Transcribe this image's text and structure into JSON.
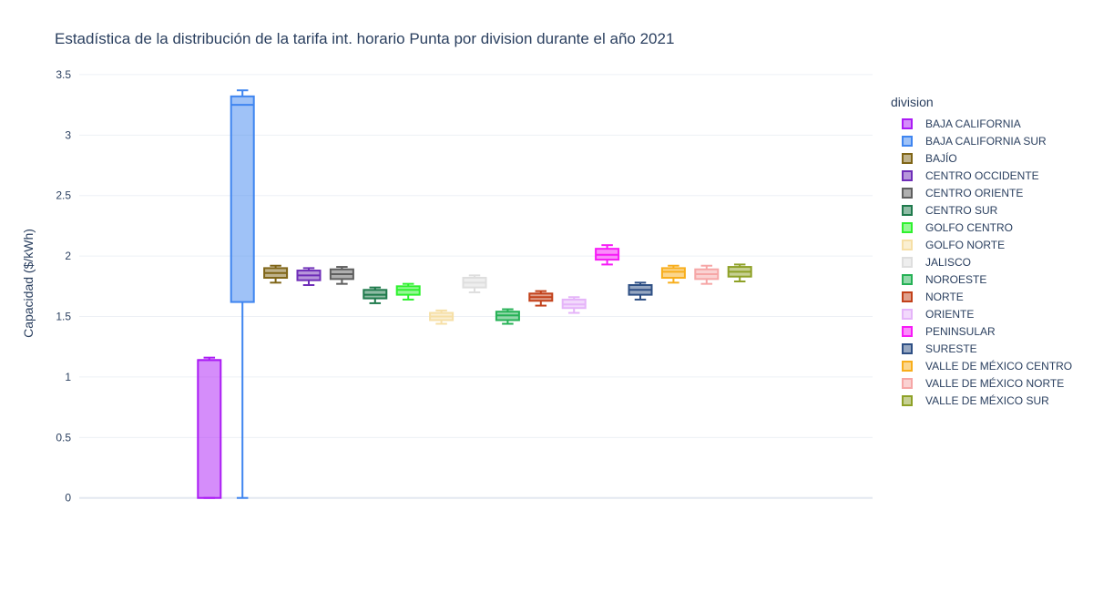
{
  "chart_data": {
    "type": "box",
    "title": "Estadística de la distribución de la tarifa int. horario Punta por division durante el año 2021",
    "ylabel": "Capacidad ($/kWh)",
    "xlabel": "",
    "ylim": [
      -0.1,
      3.65
    ],
    "yticks": [
      0,
      0.5,
      1,
      1.5,
      2,
      2.5,
      3,
      3.5
    ],
    "ytick_labels": [
      "0",
      "0.5",
      "1",
      "1.5",
      "2",
      "2.5",
      "3",
      "3.5"
    ],
    "grid": true,
    "legend_title": "division",
    "legend_position": "right",
    "series": [
      {
        "name": "BAJA CALIFORNIA",
        "color": "#ab1cf5",
        "min": 0,
        "q1": 0,
        "median": 1.14,
        "q3": 1.14,
        "max": 1.16
      },
      {
        "name": "BAJA CALIFORNIA SUR",
        "color": "#3f85f0",
        "min": 0,
        "q1": 1.62,
        "median": 3.25,
        "q3": 3.32,
        "max": 3.37
      },
      {
        "name": "BAJÍO",
        "color": "#7f6517",
        "min": 1.78,
        "q1": 1.82,
        "median": 1.86,
        "q3": 1.9,
        "max": 1.92
      },
      {
        "name": "CENTRO OCCIDENTE",
        "color": "#6f2eb8",
        "min": 1.76,
        "q1": 1.8,
        "median": 1.84,
        "q3": 1.88,
        "max": 1.9
      },
      {
        "name": "CENTRO ORIENTE",
        "color": "#5f5f5f",
        "min": 1.77,
        "q1": 1.81,
        "median": 1.85,
        "q3": 1.89,
        "max": 1.91
      },
      {
        "name": "CENTRO SUR",
        "color": "#1f7a4c",
        "min": 1.61,
        "q1": 1.65,
        "median": 1.68,
        "q3": 1.72,
        "max": 1.74
      },
      {
        "name": "GOLFO CENTRO",
        "color": "#2ef12e",
        "min": 1.64,
        "q1": 1.68,
        "median": 1.72,
        "q3": 1.75,
        "max": 1.77
      },
      {
        "name": "GOLFO NORTE",
        "color": "#f6dfa6",
        "min": 1.44,
        "q1": 1.47,
        "median": 1.5,
        "q3": 1.53,
        "max": 1.55
      },
      {
        "name": "JALISCO",
        "color": "#dedede",
        "min": 1.7,
        "q1": 1.74,
        "median": 1.78,
        "q3": 1.82,
        "max": 1.84
      },
      {
        "name": "NOROESTE",
        "color": "#25b155",
        "min": 1.44,
        "q1": 1.47,
        "median": 1.51,
        "q3": 1.54,
        "max": 1.56
      },
      {
        "name": "NORTE",
        "color": "#c2411a",
        "min": 1.59,
        "q1": 1.63,
        "median": 1.66,
        "q3": 1.69,
        "max": 1.71
      },
      {
        "name": "ORIENTE",
        "color": "#e5b4f9",
        "min": 1.53,
        "q1": 1.57,
        "median": 1.6,
        "q3": 1.64,
        "max": 1.66
      },
      {
        "name": "PENINSULAR",
        "color": "#f71af7",
        "min": 1.93,
        "q1": 1.97,
        "median": 2.01,
        "q3": 2.06,
        "max": 2.09
      },
      {
        "name": "SURESTE",
        "color": "#2e4f84",
        "min": 1.64,
        "q1": 1.68,
        "median": 1.72,
        "q3": 1.76,
        "max": 1.78
      },
      {
        "name": "VALLE DE MÉXICO CENTRO",
        "color": "#f8ae1c",
        "min": 1.78,
        "q1": 1.82,
        "median": 1.87,
        "q3": 1.9,
        "max": 1.92
      },
      {
        "name": "VALLE DE MÉXICO NORTE",
        "color": "#f6a6a6",
        "min": 1.77,
        "q1": 1.81,
        "median": 1.85,
        "q3": 1.89,
        "max": 1.92
      },
      {
        "name": "VALLE DE MÉXICO SUR",
        "color": "#8ea127",
        "min": 1.79,
        "q1": 1.83,
        "median": 1.87,
        "q3": 1.91,
        "max": 1.93
      }
    ]
  }
}
